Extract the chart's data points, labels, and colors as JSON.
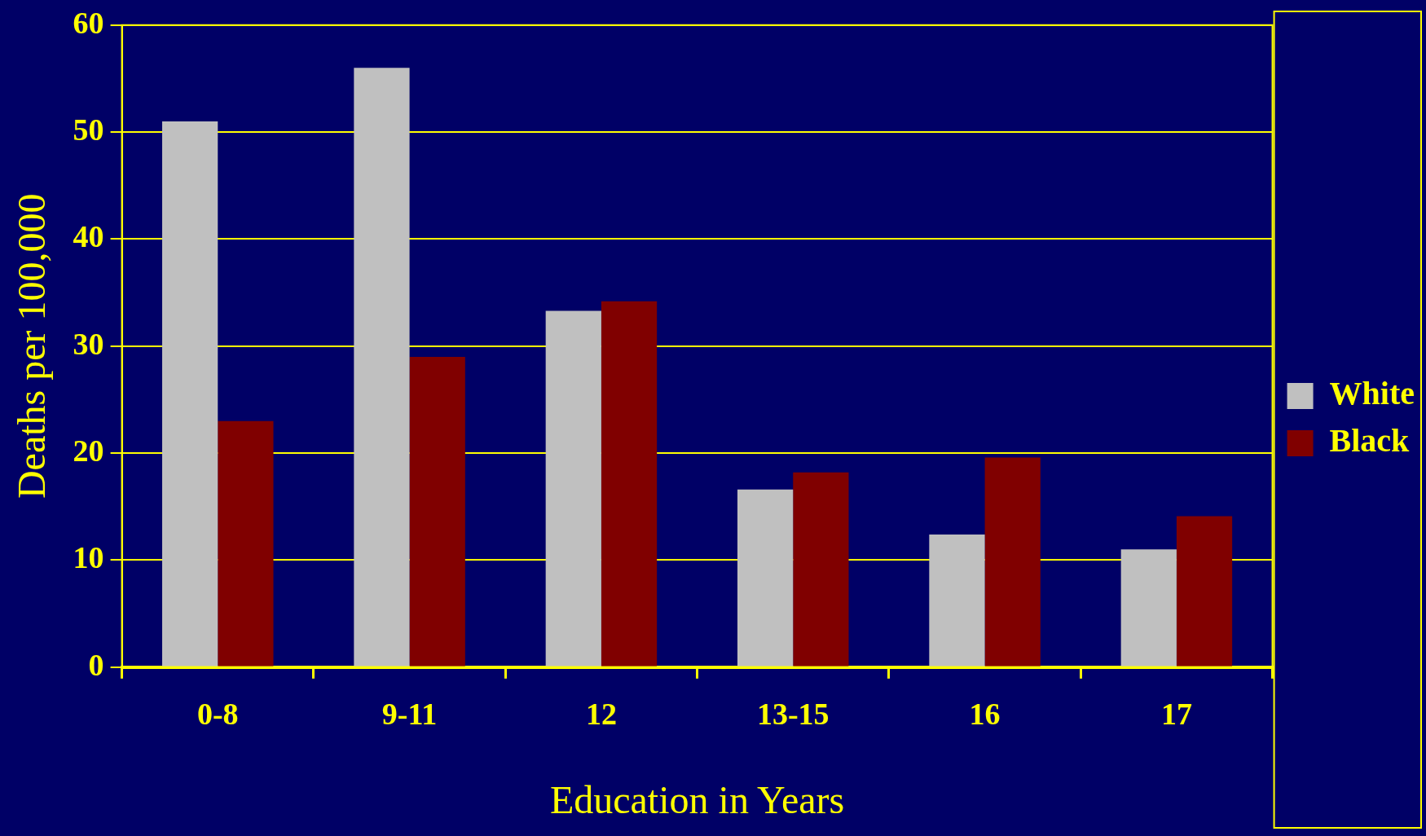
{
  "chart_data": {
    "type": "bar",
    "xlabel": "Education in Years",
    "ylabel": "Deaths per 100,000",
    "categories": [
      "0-8",
      "9-11",
      "12",
      "13-15",
      "16",
      "17"
    ],
    "series": [
      {
        "name": "White",
        "color": "#c0c0c0",
        "values": [
          51,
          56,
          33.3,
          16.6,
          12.4,
          11
        ]
      },
      {
        "name": "Black",
        "color": "#800000",
        "values": [
          23,
          29,
          34.2,
          18.2,
          19.6,
          14.1
        ]
      }
    ],
    "ylim": [
      0,
      60
    ],
    "yticks": [
      0,
      10,
      20,
      30,
      40,
      50,
      60
    ],
    "grid": "y",
    "legend": "right"
  }
}
